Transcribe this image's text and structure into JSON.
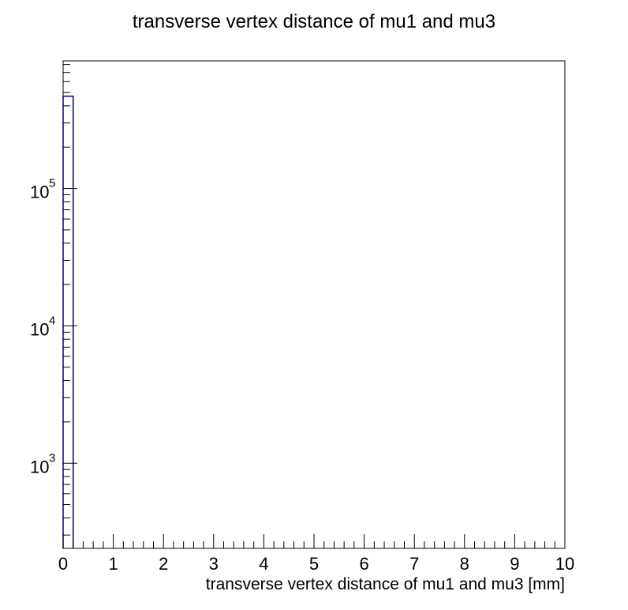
{
  "chart_data": {
    "type": "bar",
    "title": "transverse vertex distance of mu1 and mu3",
    "xlabel": "transverse vertex distance of mu1 and mu3 [mm]",
    "ylabel": "",
    "xlim": [
      0,
      10
    ],
    "ylim": [
      240,
      850000
    ],
    "yscale": "log",
    "grid": false,
    "legend": "none",
    "x_ticks": [
      "0",
      "1",
      "2",
      "3",
      "4",
      "5",
      "6",
      "7",
      "8",
      "9",
      "10"
    ],
    "y_ticks": [
      {
        "value": 1000,
        "base": "10",
        "exp": "3"
      },
      {
        "value": 10000,
        "base": "10",
        "exp": "4"
      },
      {
        "value": 100000,
        "base": "10",
        "exp": "5"
      }
    ],
    "bins": [
      {
        "x0": 0.0,
        "x1": 0.2,
        "value": 470000
      }
    ],
    "colors": {
      "line": "#00008b",
      "axis": "#000000"
    }
  }
}
